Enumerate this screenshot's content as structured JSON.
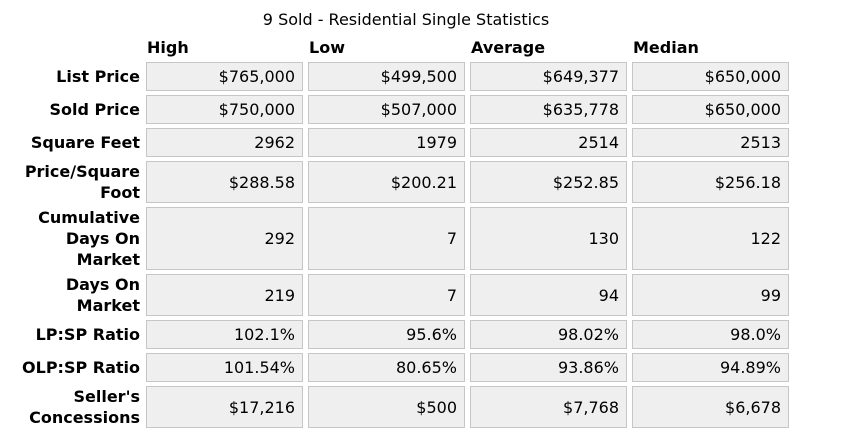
{
  "title": "9 Sold - Residential Single Statistics",
  "colors": {
    "background": "#FFFFFF",
    "cell_background": "#EFEFEF",
    "cell_border": "#C6C6C6",
    "text": "#000000"
  },
  "table": {
    "columns": [
      "High",
      "Low",
      "Average",
      "Median"
    ],
    "rows": [
      {
        "label": "List Price",
        "values": [
          "$765,000",
          "$499,500",
          "$649,377",
          "$650,000"
        ]
      },
      {
        "label": "Sold Price",
        "values": [
          "$750,000",
          "$507,000",
          "$635,778",
          "$650,000"
        ]
      },
      {
        "label": "Square Feet",
        "values": [
          "2962",
          "1979",
          "2514",
          "2513"
        ]
      },
      {
        "label": "Price/Square\nFoot",
        "values": [
          "$288.58",
          "$200.21",
          "$252.85",
          "$256.18"
        ]
      },
      {
        "label": "Cumulative\nDays On\nMarket",
        "values": [
          "292",
          "7",
          "130",
          "122"
        ]
      },
      {
        "label": "Days On\nMarket",
        "values": [
          "219",
          "7",
          "94",
          "99"
        ]
      },
      {
        "label": "LP:SP Ratio",
        "values": [
          "102.1%",
          "95.6%",
          "98.02%",
          "98.0%"
        ]
      },
      {
        "label": "OLP:SP Ratio",
        "values": [
          "101.54%",
          "80.65%",
          "93.86%",
          "94.89%"
        ]
      },
      {
        "label": "Seller's\nConcessions",
        "values": [
          "$17,216",
          "$500",
          "$7,768",
          "$6,678"
        ]
      }
    ]
  },
  "chart_data": {
    "type": "table",
    "title": "9 Sold - Residential Single Statistics",
    "sold_count": 9,
    "columns": [
      "High",
      "Low",
      "Average",
      "Median"
    ],
    "metrics": [
      {
        "name": "List Price",
        "high": 765000,
        "low": 499500,
        "average": 649377,
        "median": 650000,
        "unit": "USD"
      },
      {
        "name": "Sold Price",
        "high": 750000,
        "low": 507000,
        "average": 635778,
        "median": 650000,
        "unit": "USD"
      },
      {
        "name": "Square Feet",
        "high": 2962,
        "low": 1979,
        "average": 2514,
        "median": 2513,
        "unit": "sqft"
      },
      {
        "name": "Price/Square Foot",
        "high": 288.58,
        "low": 200.21,
        "average": 252.85,
        "median": 256.18,
        "unit": "USD"
      },
      {
        "name": "Cumulative Days On Market",
        "high": 292,
        "low": 7,
        "average": 130,
        "median": 122,
        "unit": "days"
      },
      {
        "name": "Days On Market",
        "high": 219,
        "low": 7,
        "average": 94,
        "median": 99,
        "unit": "days"
      },
      {
        "name": "LP:SP Ratio",
        "high": 102.1,
        "low": 95.6,
        "average": 98.02,
        "median": 98.0,
        "unit": "%"
      },
      {
        "name": "OLP:SP Ratio",
        "high": 101.54,
        "low": 80.65,
        "average": 93.86,
        "median": 94.89,
        "unit": "%"
      },
      {
        "name": "Seller's Concessions",
        "high": 17216,
        "low": 500,
        "average": 7768,
        "median": 6678,
        "unit": "USD"
      }
    ]
  }
}
